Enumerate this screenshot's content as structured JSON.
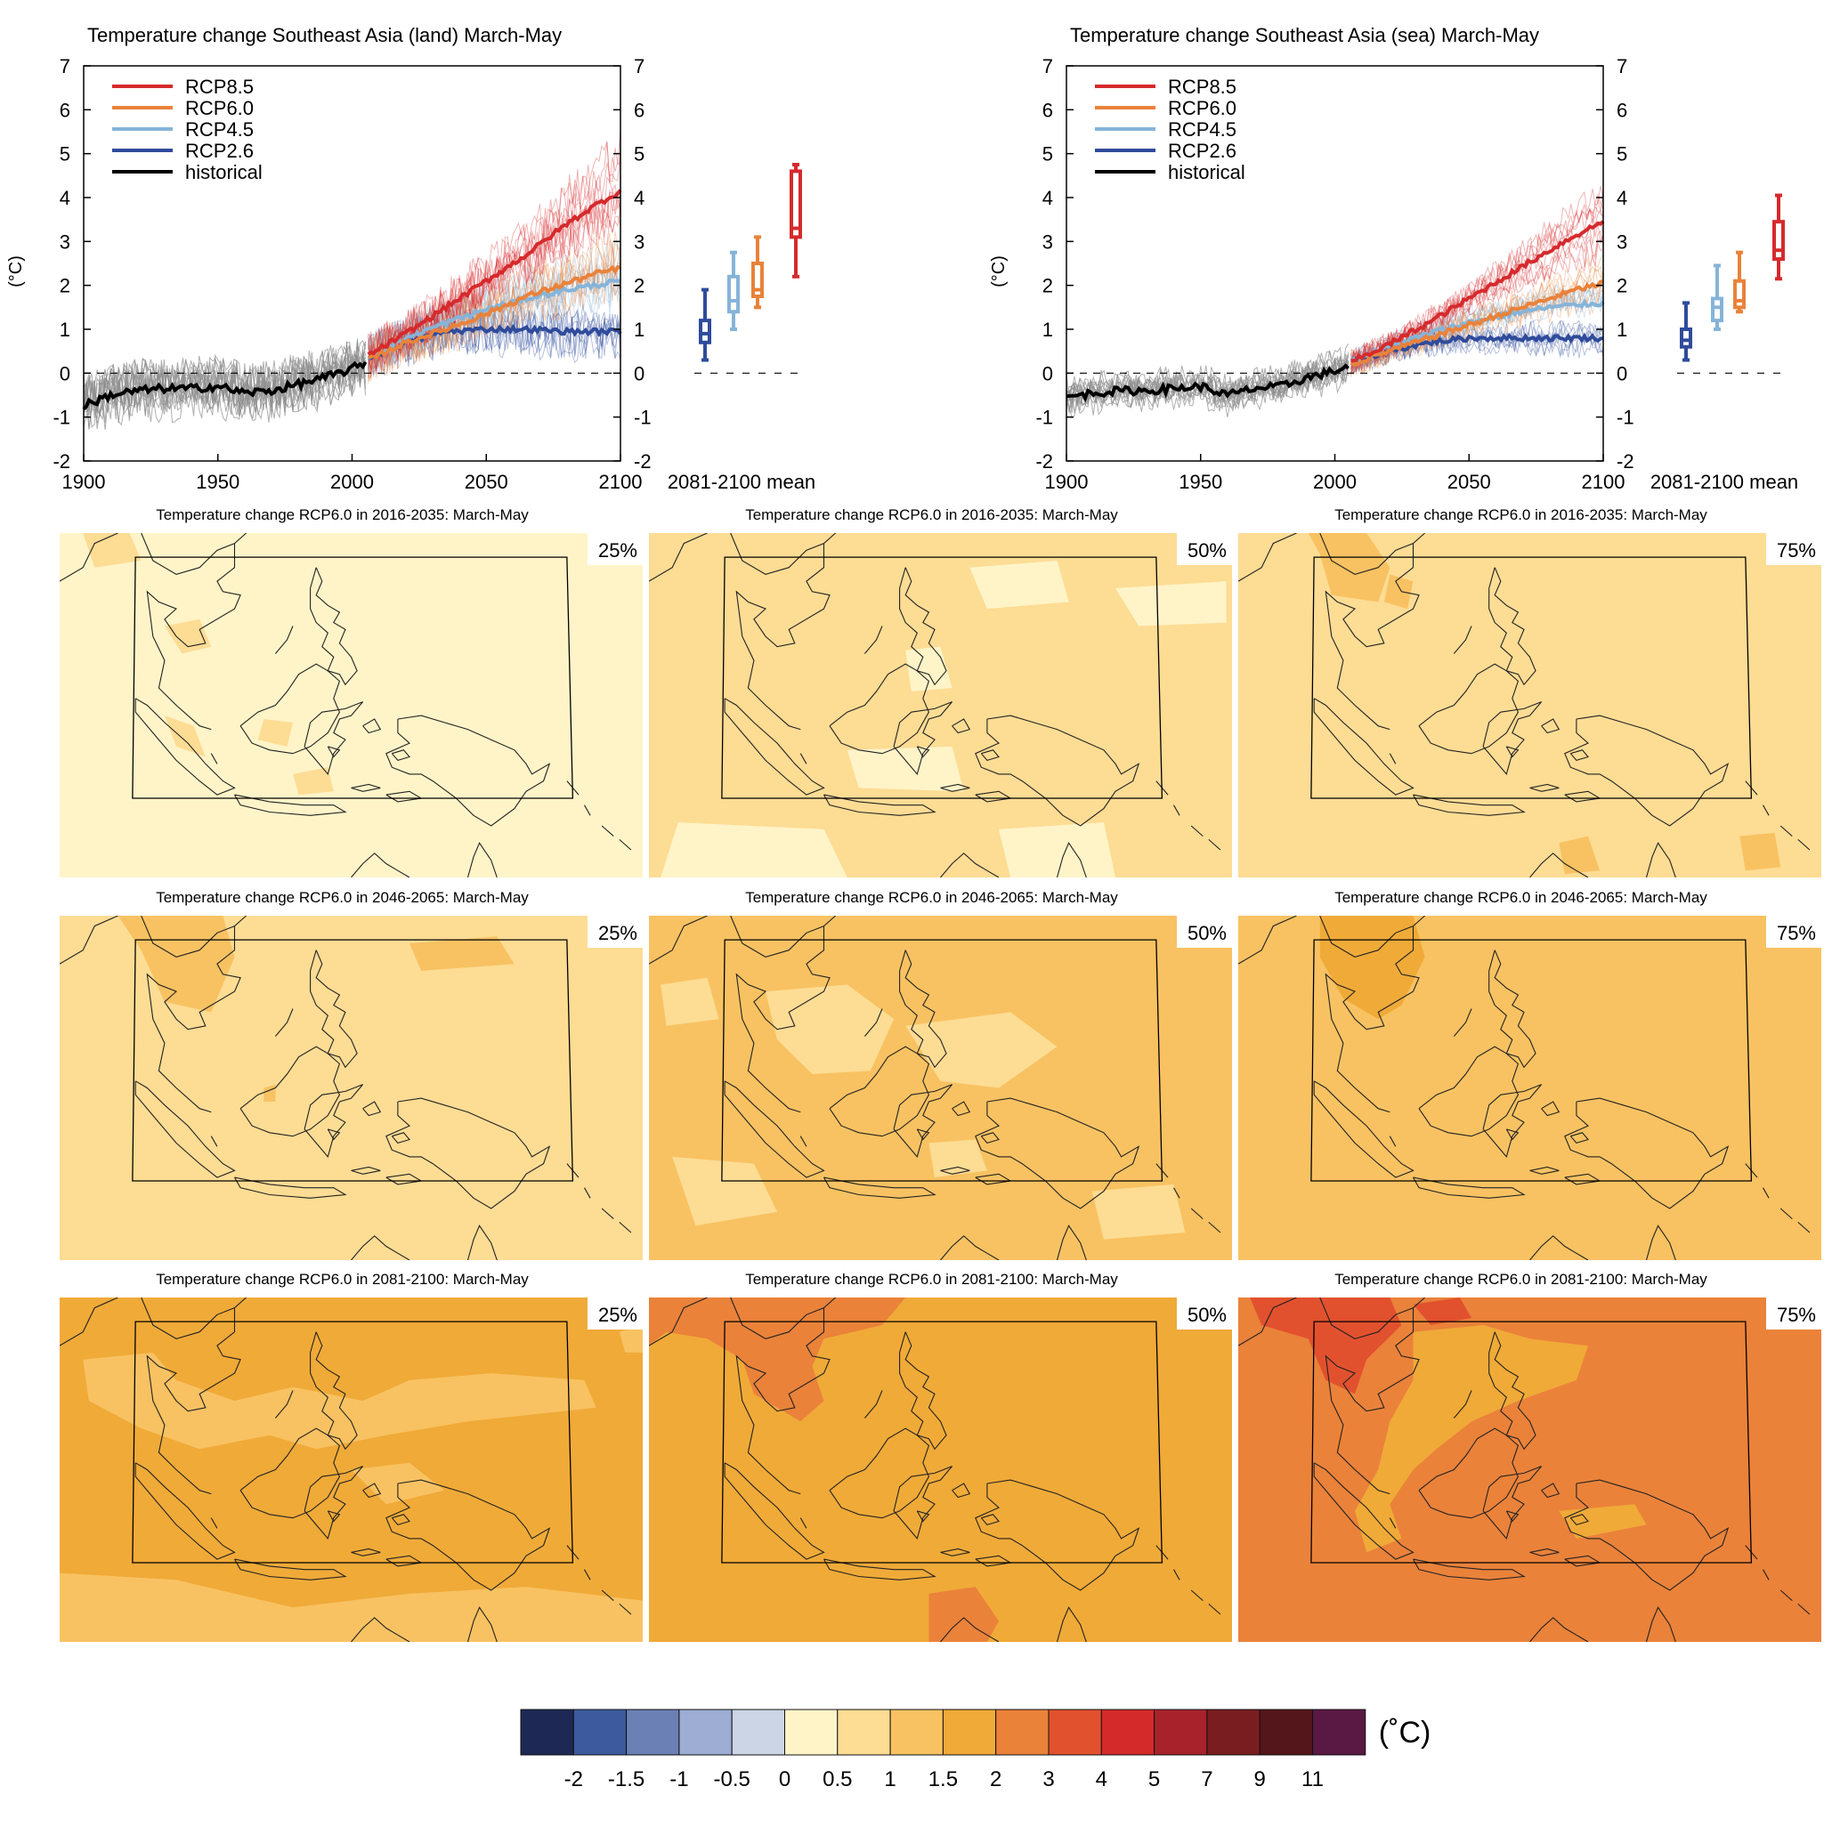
{
  "colors": {
    "rcp85": "#d62a2d",
    "rcp60": "#e9823a",
    "rcp45": "#86b4d9",
    "rcp26": "#2f4b9b",
    "historical": "#000000",
    "historical_members": "#8d8d8d"
  },
  "chart_data": [
    {
      "type": "line",
      "title": "Temperature change Southeast Asia (land) March-May",
      "ylabel": "(°C)",
      "xlim": [
        1900,
        2100
      ],
      "ylim": [
        -2,
        7
      ],
      "x_ticks": [
        "1900",
        "1950",
        "2000",
        "2050",
        "2100"
      ],
      "y_ticks": [
        "-2",
        "-1",
        "0",
        "1",
        "2",
        "3",
        "4",
        "5",
        "6",
        "7"
      ],
      "boxplot_label": "2081-2100 mean",
      "legend_position": "top-left",
      "series": [
        {
          "name": "RCP8.5",
          "key": "rcp85",
          "x": [
            2006,
            2020,
            2035,
            2050,
            2065,
            2080,
            2090,
            2100
          ],
          "y": [
            0.4,
            0.9,
            1.5,
            2.1,
            2.7,
            3.4,
            3.8,
            4.15
          ]
        },
        {
          "name": "RCP6.0",
          "key": "rcp60",
          "x": [
            2006,
            2020,
            2035,
            2050,
            2065,
            2080,
            2090,
            2100
          ],
          "y": [
            0.3,
            0.7,
            1.0,
            1.35,
            1.75,
            2.05,
            2.25,
            2.4
          ]
        },
        {
          "name": "RCP4.5",
          "key": "rcp45",
          "x": [
            2006,
            2020,
            2035,
            2050,
            2065,
            2080,
            2090,
            2100
          ],
          "y": [
            0.35,
            0.8,
            1.15,
            1.45,
            1.7,
            1.9,
            2.0,
            2.1
          ]
        },
        {
          "name": "RCP2.6",
          "key": "rcp26",
          "x": [
            2006,
            2020,
            2035,
            2050,
            2065,
            2080,
            2090,
            2100
          ],
          "y": [
            0.35,
            0.7,
            0.95,
            1.0,
            1.0,
            0.95,
            0.95,
            0.95
          ]
        },
        {
          "name": "historical",
          "key": "historical",
          "x": [
            1900,
            1910,
            1920,
            1930,
            1940,
            1950,
            1960,
            1970,
            1980,
            1990,
            2000,
            2005
          ],
          "y": [
            -0.75,
            -0.5,
            -0.4,
            -0.35,
            -0.35,
            -0.3,
            -0.45,
            -0.4,
            -0.25,
            -0.1,
            0.1,
            0.25
          ]
        }
      ],
      "boxes": [
        {
          "key": "rcp26",
          "min": 0.3,
          "q1": 0.7,
          "median": 0.9,
          "q3": 1.2,
          "max": 1.9
        },
        {
          "key": "rcp45",
          "min": 1.0,
          "q1": 1.4,
          "median": 1.65,
          "q3": 2.2,
          "max": 2.75
        },
        {
          "key": "rcp60",
          "min": 1.5,
          "q1": 1.75,
          "median": 1.9,
          "q3": 2.5,
          "max": 3.1
        },
        {
          "key": "rcp85",
          "min": 2.2,
          "q1": 3.1,
          "median": 3.3,
          "q3": 4.6,
          "max": 4.75
        }
      ]
    },
    {
      "type": "line",
      "title": "Temperature change Southeast Asia (sea) March-May",
      "ylabel": "(°C)",
      "xlim": [
        1900,
        2100
      ],
      "ylim": [
        -2,
        7
      ],
      "x_ticks": [
        "1900",
        "1950",
        "2000",
        "2050",
        "2100"
      ],
      "y_ticks": [
        "-2",
        "-1",
        "0",
        "1",
        "2",
        "3",
        "4",
        "5",
        "6",
        "7"
      ],
      "boxplot_label": "2081-2100 mean",
      "legend_position": "top-left",
      "series": [
        {
          "name": "RCP8.5",
          "key": "rcp85",
          "x": [
            2006,
            2020,
            2035,
            2050,
            2065,
            2080,
            2090,
            2100
          ],
          "y": [
            0.25,
            0.65,
            1.15,
            1.7,
            2.25,
            2.8,
            3.15,
            3.45
          ]
        },
        {
          "name": "RCP6.0",
          "key": "rcp60",
          "x": [
            2006,
            2020,
            2035,
            2050,
            2065,
            2080,
            2090,
            2100
          ],
          "y": [
            0.2,
            0.5,
            0.8,
            1.1,
            1.4,
            1.7,
            1.9,
            2.05
          ]
        },
        {
          "name": "RCP4.5",
          "key": "rcp45",
          "x": [
            2006,
            2020,
            2035,
            2050,
            2065,
            2080,
            2090,
            2100
          ],
          "y": [
            0.25,
            0.6,
            0.9,
            1.15,
            1.35,
            1.5,
            1.55,
            1.6
          ]
        },
        {
          "name": "RCP2.6",
          "key": "rcp26",
          "x": [
            2006,
            2020,
            2035,
            2050,
            2065,
            2080,
            2090,
            2100
          ],
          "y": [
            0.25,
            0.5,
            0.7,
            0.8,
            0.8,
            0.8,
            0.8,
            0.8
          ]
        },
        {
          "name": "historical",
          "key": "historical",
          "x": [
            1900,
            1910,
            1920,
            1930,
            1940,
            1950,
            1960,
            1970,
            1980,
            1990,
            2000,
            2005
          ],
          "y": [
            -0.55,
            -0.45,
            -0.4,
            -0.4,
            -0.35,
            -0.3,
            -0.5,
            -0.35,
            -0.3,
            -0.1,
            0.05,
            0.15
          ]
        }
      ],
      "boxes": [
        {
          "key": "rcp26",
          "min": 0.3,
          "q1": 0.6,
          "median": 0.75,
          "q3": 1.0,
          "max": 1.6
        },
        {
          "key": "rcp45",
          "min": 1.0,
          "q1": 1.2,
          "median": 1.5,
          "q3": 1.7,
          "max": 2.45
        },
        {
          "key": "rcp60",
          "min": 1.4,
          "q1": 1.5,
          "median": 1.65,
          "q3": 2.1,
          "max": 2.75
        },
        {
          "key": "rcp85",
          "min": 2.15,
          "q1": 2.6,
          "median": 2.8,
          "q3": 3.45,
          "max": 4.05
        }
      ]
    },
    {
      "type": "heatmap",
      "maps": [
        {
          "title": "Temperature change RCP6.0 in 2016-2035: March-May",
          "percentile": "25%",
          "base_class": "0.5-1",
          "patch_class": "1-1.5"
        },
        {
          "title": "Temperature change RCP6.0 in 2016-2035: March-May",
          "percentile": "50%",
          "base_class": "1-1.5",
          "patch_class": "0.5-1"
        },
        {
          "title": "Temperature change RCP6.0 in 2016-2035: March-May",
          "percentile": "75%",
          "base_class": "1-1.5",
          "patch_class": "1.5-2"
        },
        {
          "title": "Temperature change RCP6.0 in 2046-2065: March-May",
          "percentile": "25%",
          "base_class": "1-1.5",
          "patch_class": "1.5-2"
        },
        {
          "title": "Temperature change RCP6.0 in 2046-2065: March-May",
          "percentile": "50%",
          "base_class": "1.5-2",
          "patch_class": "1-1.5"
        },
        {
          "title": "Temperature change RCP6.0 in 2046-2065: March-May",
          "percentile": "75%",
          "base_class": "1.5-2",
          "patch_class": "2-3"
        },
        {
          "title": "Temperature change RCP6.0 in 2081-2100: March-May",
          "percentile": "25%",
          "base_class": "2-3",
          "patch_class": "1.5-2"
        },
        {
          "title": "Temperature change RCP6.0 in 2081-2100: March-May",
          "percentile": "50%",
          "base_class": "2-3",
          "patch_class": "3-4"
        },
        {
          "title": "Temperature change RCP6.0 in 2081-2100: March-May",
          "percentile": "75%",
          "base_class": "3-4",
          "patch_class": "4-5"
        }
      ]
    }
  ],
  "colorbar": {
    "unit": "(˚C)",
    "tick_labels": [
      "-2",
      "-1.5",
      "-1",
      "-0.5",
      "0",
      "0.5",
      "1",
      "1.5",
      "2",
      "3",
      "4",
      "5",
      "7",
      "9",
      "11"
    ],
    "colors": [
      "#1e2855",
      "#3d5a9e",
      "#6b80b5",
      "#9dadd3",
      "#ccd5e5",
      "#fff4c8",
      "#fddc94",
      "#f8c262",
      "#f0aa38",
      "#ea823a",
      "#e2512e",
      "#d42a2a",
      "#a8222b",
      "#7a1d20",
      "#54161a",
      "#5a1844"
    ],
    "class_colors": {
      "0.5-1": "#fff4c8",
      "1-1.5": "#fddc94",
      "1.5-2": "#f8c262",
      "2-3": "#f0aa38",
      "3-4": "#ea823a",
      "4-5": "#e2512e"
    }
  }
}
